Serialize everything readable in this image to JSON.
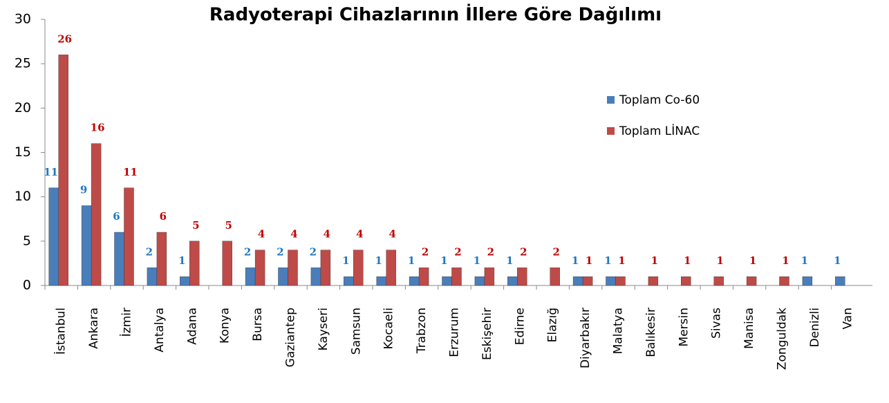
{
  "chart_data": {
    "type": "bar",
    "title": "Radyoterapi Cihazlarının İllere Göre Dağılımı",
    "categories": [
      "İstanbul",
      "Ankara",
      "İzmir",
      "Antalya",
      "Adana",
      "Konya",
      "Bursa",
      "Gaziantep",
      "Kayseri",
      "Samsun",
      "Kocaeli",
      "Trabzon",
      "Erzurum",
      "Eskişehir",
      "Edirne",
      "Elazığ",
      "Diyarbakır",
      "Malatya",
      "Balıkesir",
      "Mersin",
      "Sivas",
      "Manisa",
      "Zonguldak",
      "Denizli",
      "Van"
    ],
    "series": [
      {
        "name": "Toplam Co-60",
        "color": "#4a7ebb",
        "label_color": "#1f77c4",
        "values": [
          11,
          9,
          6,
          2,
          1,
          null,
          2,
          2,
          2,
          1,
          1,
          1,
          1,
          1,
          1,
          null,
          1,
          1,
          null,
          null,
          null,
          null,
          null,
          1,
          1
        ]
      },
      {
        "name": "Toplam LİNAC",
        "color": "#be4b48",
        "label_color": "#c00000",
        "values": [
          26,
          16,
          11,
          6,
          5,
          5,
          4,
          4,
          4,
          4,
          4,
          2,
          2,
          2,
          2,
          2,
          1,
          1,
          1,
          1,
          1,
          1,
          1,
          null,
          null
        ]
      }
    ],
    "ylim": [
      0,
      30
    ],
    "yticks": [
      0,
      5,
      10,
      15,
      20,
      25,
      30
    ],
    "grid": false,
    "legend": "right"
  }
}
